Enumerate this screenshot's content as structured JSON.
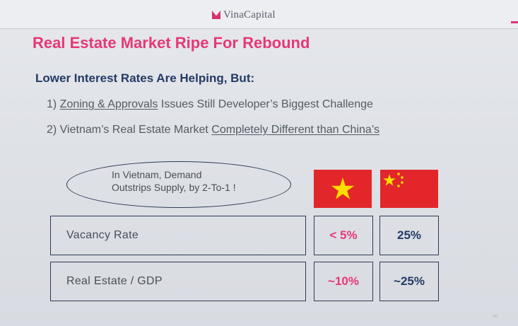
{
  "header": {
    "brand": "VinaCapital"
  },
  "slide": {
    "title": "Real Estate Market Ripe For Rebound",
    "subtitle": "Lower Interest Rates Are Helping, But:",
    "points": [
      {
        "prefix": "1) ",
        "underlined": "Zoning & Approvals",
        "suffix": " Issues Still Developer’s Biggest Challenge",
        "tail": ""
      },
      {
        "prefix": "2) Vietnam’s Real Estate Market ",
        "underlined": "Completely Different than China’s",
        "suffix": "",
        "tail": ""
      }
    ],
    "callout": {
      "line1": "In Vietnam, Demand",
      "line2": "Outstrips Supply, by 2-To-1 !"
    },
    "flags": {
      "vietnam": "vietnam-flag-icon",
      "china": "china-flag-icon"
    },
    "rows": [
      {
        "label": "Vacancy Rate",
        "vietnam": "< 5%",
        "china": "25%"
      },
      {
        "label": "Real Estate / GDP",
        "vietnam": "~10%",
        "china": "~25%"
      }
    ],
    "page_number": "40"
  },
  "colors": {
    "accent_pink": "#e63877",
    "navy": "#243a66",
    "flag_red": "#e2262a",
    "flag_yellow": "#ffde00"
  }
}
